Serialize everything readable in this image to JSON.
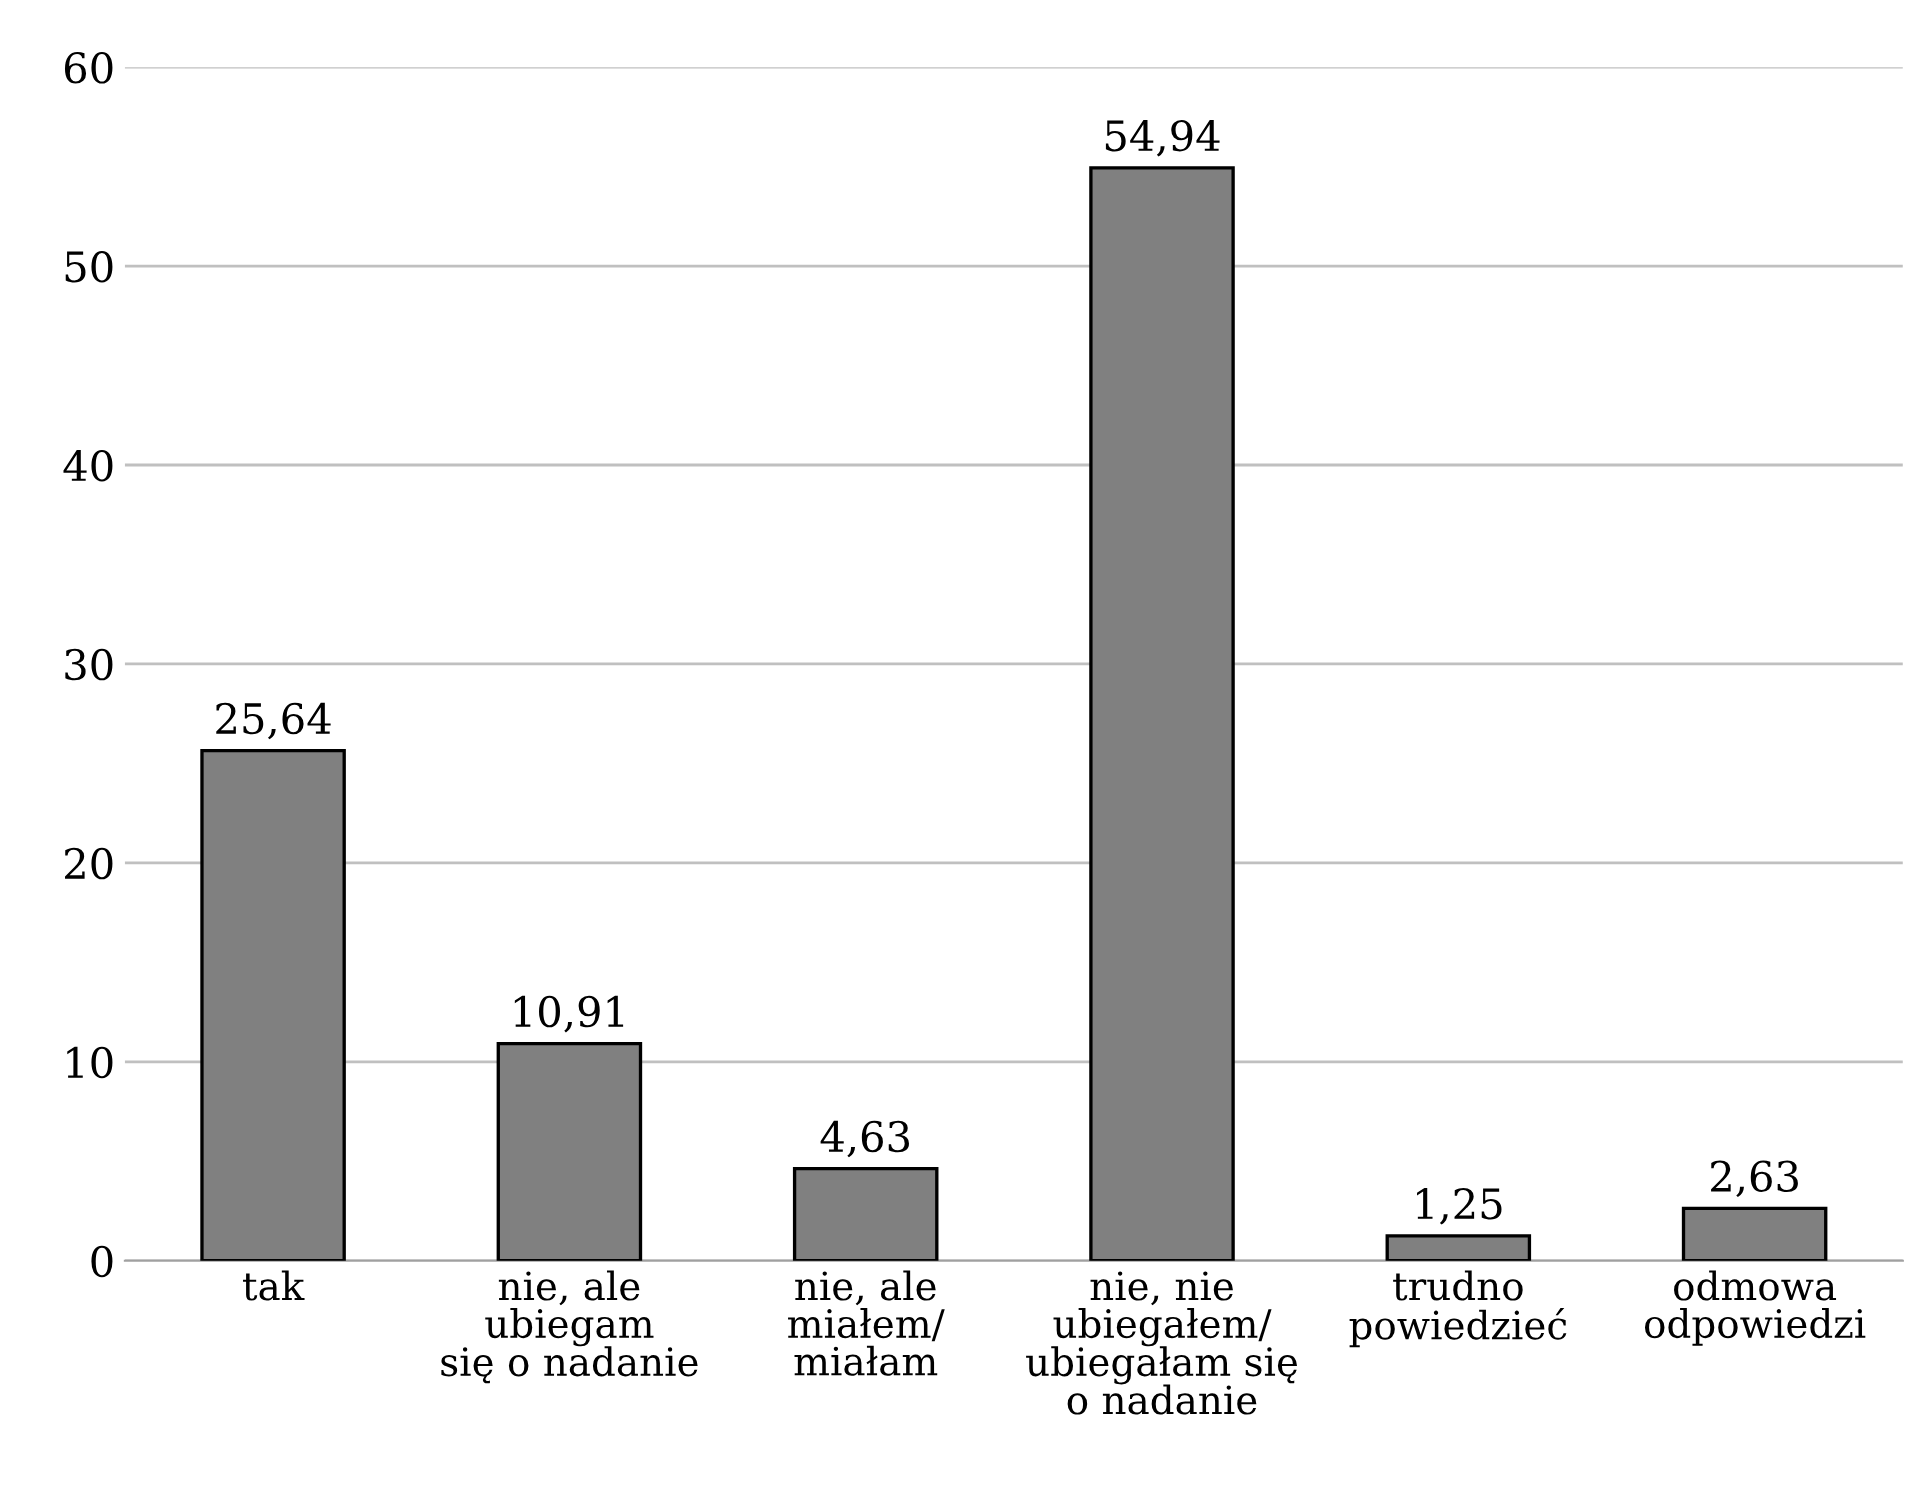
{
  "chart_data": {
    "type": "bar",
    "categories": [
      "tak",
      "nie, ale\nubiegam\nsię o nadanie",
      "nie, ale\nmiałem/\nmiałam",
      "nie, nie\nubiegałem/\nubiegałam się\no nadanie",
      "trudno\npowiedzieć",
      "odmowa\nodpowiedzi"
    ],
    "values": [
      25.64,
      10.91,
      4.63,
      54.94,
      1.25,
      2.63
    ],
    "value_labels": [
      "25,64",
      "10,91",
      "4,63",
      "54,94",
      "1,25",
      "2,63"
    ],
    "color": "#808080",
    "ylim": [
      0,
      60
    ],
    "yticks": [
      0,
      10,
      20,
      30,
      40,
      50,
      60
    ],
    "grid": "y",
    "legend": false
  }
}
